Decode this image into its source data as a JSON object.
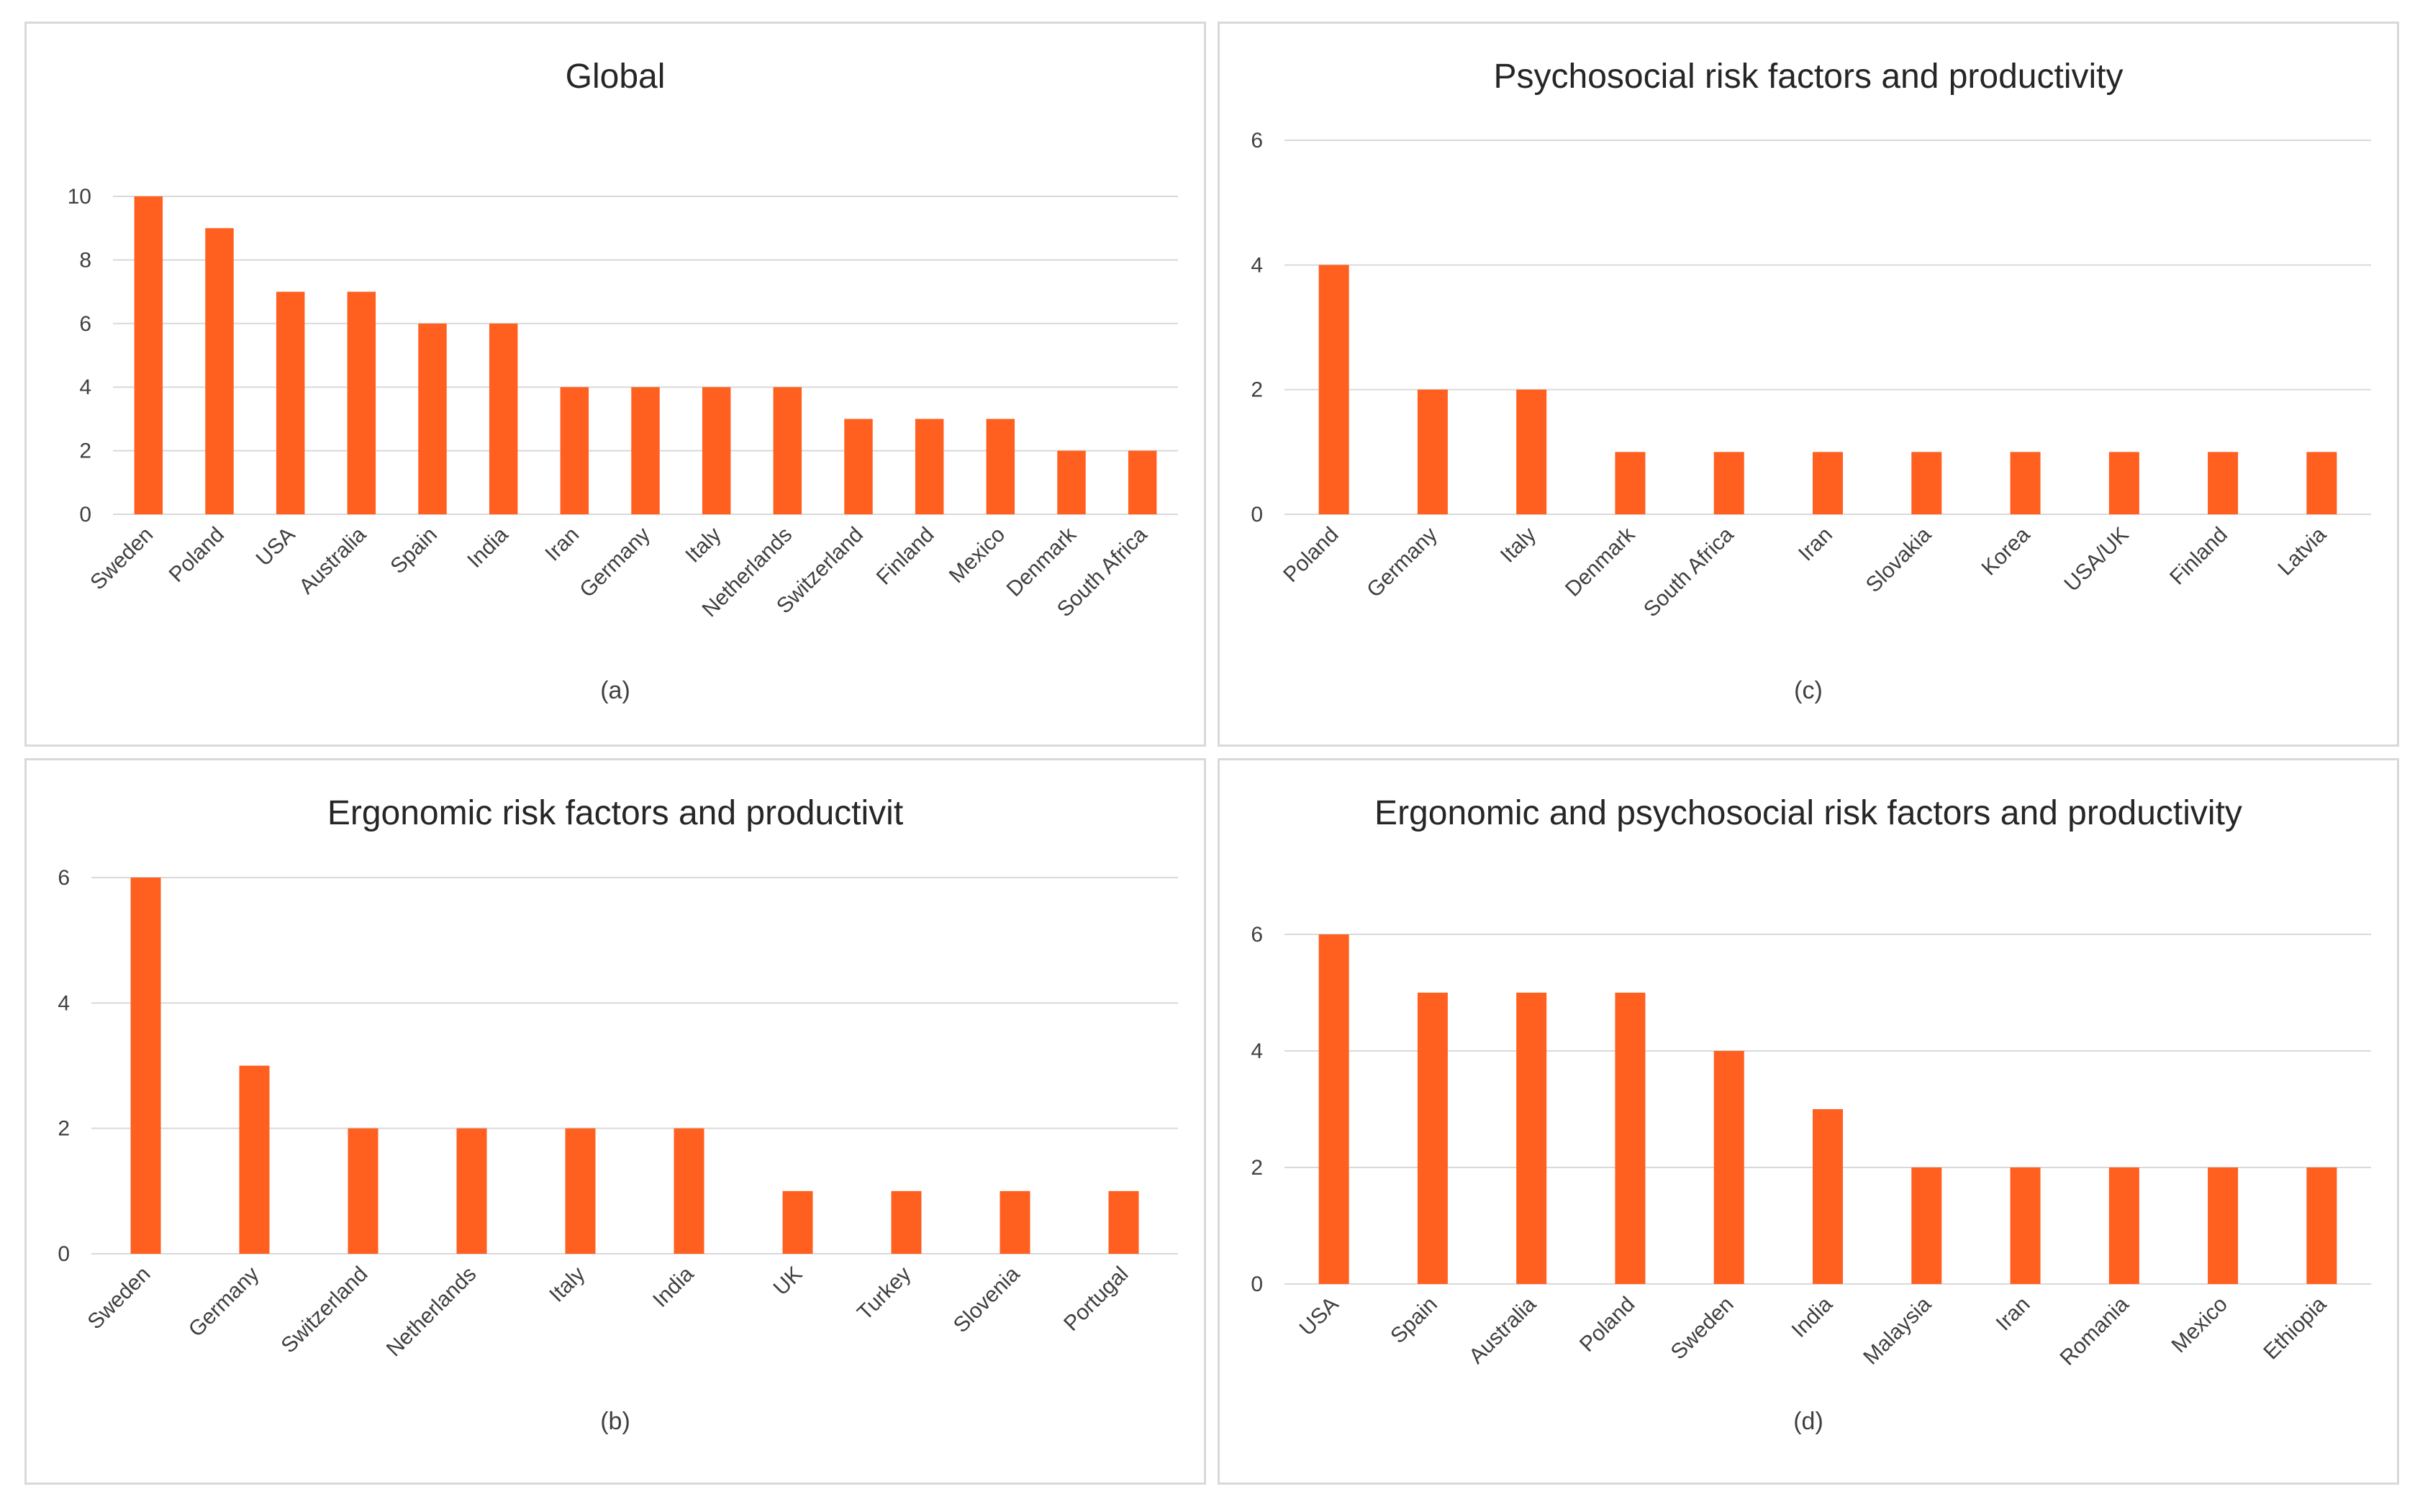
{
  "colors": {
    "bar": "#FF5F1F",
    "grid": "#d9d9d9",
    "text": "#404040",
    "border": "#d9d9d9"
  },
  "chart_data": [
    {
      "id": "a",
      "type": "bar",
      "title": "Global",
      "caption": "(a)",
      "categories": [
        "Sweden",
        "Poland",
        "USA",
        "Australia",
        "Spain",
        "India",
        "Iran",
        "Germany",
        "Italy",
        "Netherlands",
        "Switzerland",
        "Finland",
        "Mexico",
        "Denmark",
        "South Africa"
      ],
      "values": [
        10,
        9,
        7,
        7,
        6,
        6,
        4,
        4,
        4,
        4,
        3,
        3,
        3,
        2,
        2
      ],
      "ylim": [
        0,
        10
      ],
      "yticks": [
        "0",
        "2",
        "4",
        "6",
        "8",
        "10"
      ],
      "xlabel": "",
      "ylabel": ""
    },
    {
      "id": "b",
      "type": "bar",
      "title": "Ergonomic risk factors and productivit",
      "caption": "(b)",
      "categories": [
        "Sweden",
        "Germany",
        "Switzerland",
        "Netherlands",
        "Italy",
        "India",
        "UK",
        "Turkey",
        "Slovenia",
        "Portugal"
      ],
      "values": [
        6,
        3,
        2,
        2,
        2,
        2,
        1,
        1,
        1,
        1
      ],
      "ylim": [
        0,
        6
      ],
      "yticks": [
        "0",
        "2",
        "4",
        "6"
      ],
      "xlabel": "",
      "ylabel": ""
    },
    {
      "id": "c",
      "type": "bar",
      "title": "Psychosocial risk factors and productivity",
      "caption": "(c)",
      "categories": [
        "Poland",
        "Germany",
        "Italy",
        "Denmark",
        "South Africa",
        "Iran",
        "Slovakia",
        "Korea",
        "USA/UK",
        "Finland",
        "Latvia"
      ],
      "values": [
        4,
        2,
        2,
        1,
        1,
        1,
        1,
        1,
        1,
        1,
        1
      ],
      "ylim": [
        0,
        6
      ],
      "yticks": [
        "0",
        "2",
        "4",
        "6"
      ],
      "xlabel": "",
      "ylabel": ""
    },
    {
      "id": "d",
      "type": "bar",
      "title": "Ergonomic and psychosocial risk factors and productivity",
      "caption": "(d)",
      "categories": [
        "USA",
        "Spain",
        "Australia",
        "Poland",
        "Sweden",
        "India",
        "Malaysia",
        "Iran",
        "Romania",
        "Mexico",
        "Ethiopia"
      ],
      "values": [
        6,
        5,
        5,
        5,
        4,
        3,
        2,
        2,
        2,
        2,
        2
      ],
      "ylim": [
        0,
        6
      ],
      "yticks": [
        "0",
        "2",
        "4",
        "6"
      ],
      "xlabel": "",
      "ylabel": ""
    }
  ]
}
